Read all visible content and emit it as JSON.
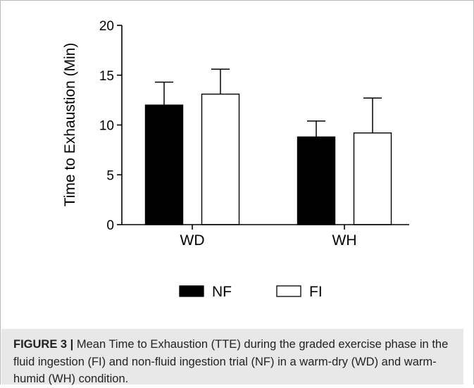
{
  "figure": {
    "caption_label": "FIGURE 3 |",
    "caption_text": "Mean Time to Exhaustion (TTE) during the graded exercise phase in the fluid ingestion (FI) and non-fluid ingestion trial (NF) in a warm-dry (WD) and warm-humid (WH) condition."
  },
  "chart_data": {
    "type": "bar",
    "ylabel": "Time to Exhaustion (Min)",
    "ylim": [
      0,
      20
    ],
    "yticks": [
      0,
      5,
      10,
      15,
      20
    ],
    "categories": [
      "WD",
      "WH"
    ],
    "series": [
      {
        "name": "NF",
        "values": [
          12.0,
          8.8
        ],
        "errors": [
          2.3,
          1.6
        ],
        "color": "#000000"
      },
      {
        "name": "FI",
        "values": [
          13.1,
          9.2
        ],
        "errors": [
          2.5,
          3.5
        ],
        "color": "#ffffff"
      }
    ],
    "legend_position": "bottom",
    "grid": false
  }
}
